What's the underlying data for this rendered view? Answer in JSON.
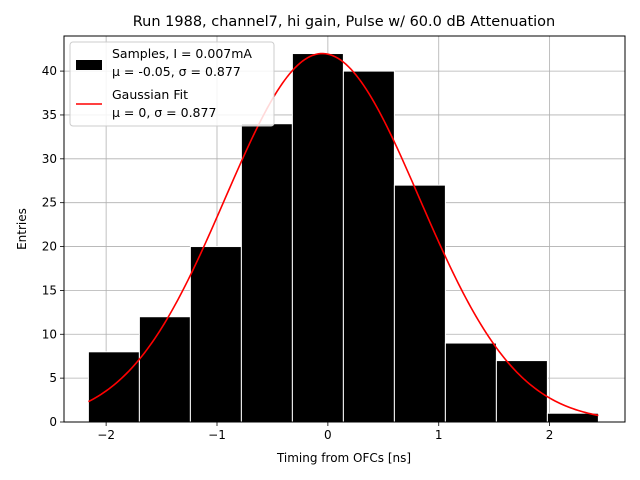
{
  "chart_data": {
    "type": "bar",
    "title": "Run 1988, channel7, hi gain, Pulse w/ 60.0 dB Attenuation",
    "xlabel": "Timing from OFCs [ns]",
    "ylabel": "Entries",
    "xlim": [
      -2.38,
      2.68
    ],
    "ylim": [
      0,
      44
    ],
    "xticks": [
      -2,
      -1,
      0,
      1,
      2
    ],
    "yticks": [
      0,
      5,
      10,
      15,
      20,
      25,
      30,
      35,
      40
    ],
    "grid": true,
    "legend_position": "top-left",
    "histogram": {
      "name_line1": "Samples, I = 0.007mA",
      "name_line2": "μ = -0.05, σ = 0.877",
      "color": "#000000",
      "edge_color": "#ffffff",
      "bins": [
        {
          "x0": -2.16,
          "x1": -1.7,
          "count": 8
        },
        {
          "x0": -1.7,
          "x1": -1.24,
          "count": 12
        },
        {
          "x0": -1.24,
          "x1": -0.78,
          "count": 20
        },
        {
          "x0": -0.78,
          "x1": -0.32,
          "count": 34
        },
        {
          "x0": -0.32,
          "x1": 0.14,
          "count": 42
        },
        {
          "x0": 0.14,
          "x1": 0.6,
          "count": 40
        },
        {
          "x0": 0.6,
          "x1": 1.06,
          "count": 27
        },
        {
          "x0": 1.06,
          "x1": 1.52,
          "count": 9
        },
        {
          "x0": 1.52,
          "x1": 1.98,
          "count": 7
        },
        {
          "x0": 1.98,
          "x1": 2.44,
          "count": 1
        }
      ]
    },
    "fit": {
      "name_line1": "Gaussian Fit",
      "name_line2": "μ = 0, σ = 0.877",
      "color": "#ff0000",
      "amplitude": 42,
      "mean": -0.05,
      "sigma": 0.877,
      "x_range": [
        -2.16,
        2.44
      ]
    }
  }
}
